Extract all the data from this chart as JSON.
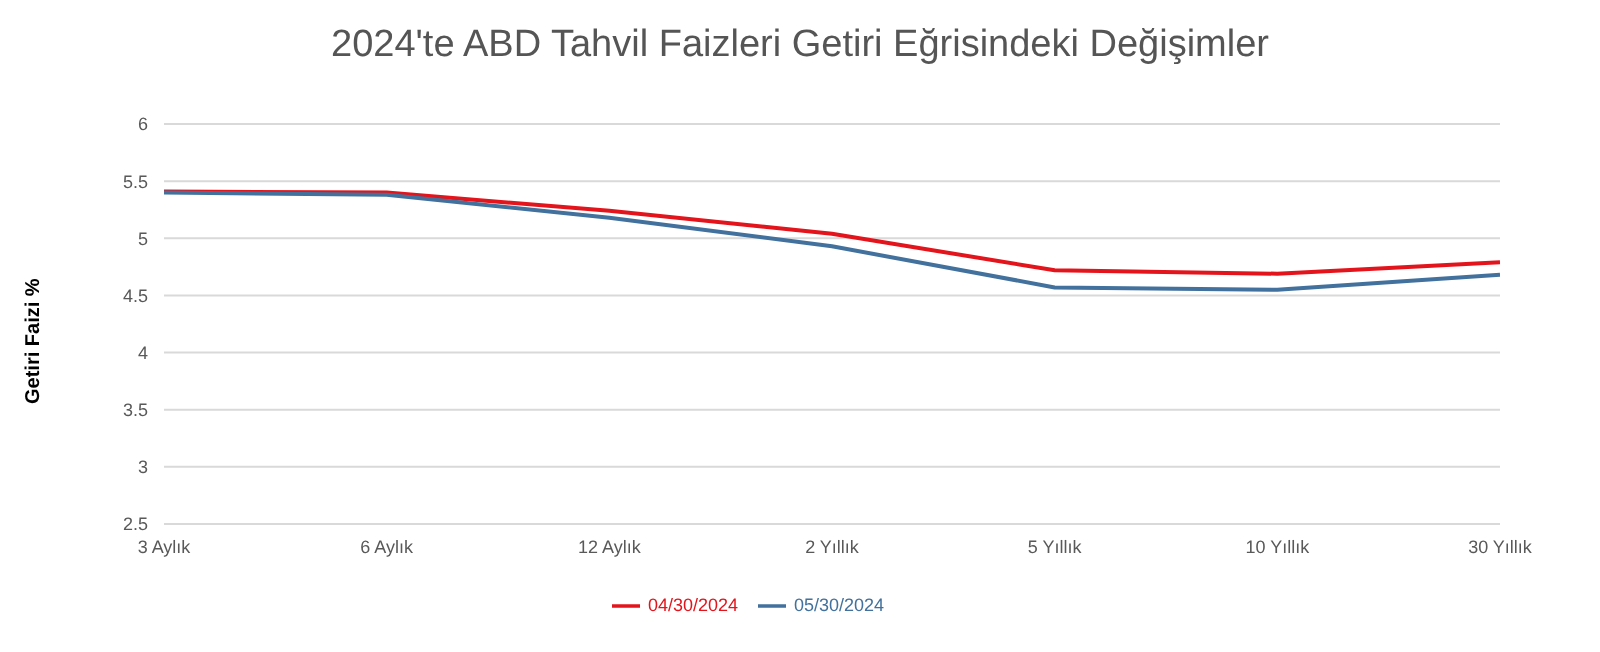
{
  "chart_data": {
    "type": "line",
    "title": "2024'te ABD Tahvil Faizleri Getiri Eğrisindeki Değişimler",
    "ylabel": "Getiri Faizi %",
    "categories": [
      "3 Aylık",
      "6 Aylık",
      "12 Aylık",
      "2 Yıllık",
      "5 Yıllık",
      "10 Yıllık",
      "30 Yıllık"
    ],
    "series": [
      {
        "name": "04/30/2024",
        "color": "#e3141b",
        "values": [
          5.41,
          5.4,
          5.24,
          5.04,
          4.72,
          4.69,
          4.79
        ]
      },
      {
        "name": "05/30/2024",
        "color": "#41719c",
        "values": [
          5.4,
          5.38,
          5.18,
          4.93,
          4.57,
          4.55,
          4.68
        ]
      }
    ],
    "ylim": [
      2.5,
      6
    ],
    "yticks": [
      2.5,
      3,
      3.5,
      4,
      4.5,
      5,
      5.5,
      6
    ],
    "grid": "y",
    "legend": "bottom",
    "marker": "none",
    "line_style": "solid"
  }
}
